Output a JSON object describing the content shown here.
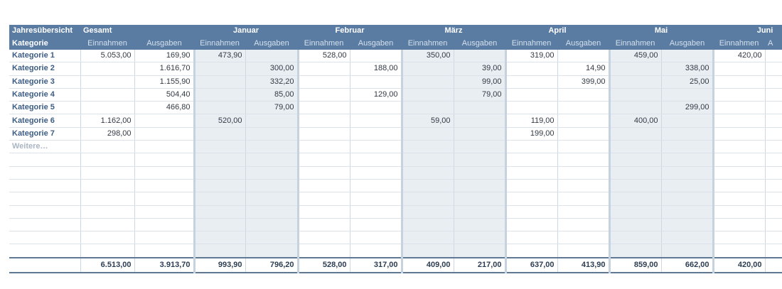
{
  "header": {
    "title": "Jahresübersicht",
    "gesamt": "Gesamt",
    "months": [
      "Januar",
      "Februar",
      "März",
      "April",
      "Mai",
      "Juni"
    ],
    "kategorie": "Kategorie",
    "einnahmen": "Einnahmen",
    "ausgaben": "Ausgaben",
    "ausgaben_clipped": "A"
  },
  "rows": [
    {
      "label": "Kategorie 1",
      "cells": [
        "5.053,00",
        "169,90",
        "473,90",
        "",
        "528,00",
        "",
        "350,00",
        "",
        "319,00",
        "",
        "459,00",
        "",
        "420,00",
        ""
      ]
    },
    {
      "label": "Kategorie 2",
      "cells": [
        "",
        "1.616,70",
        "",
        "300,00",
        "",
        "188,00",
        "",
        "39,00",
        "",
        "14,90",
        "",
        "338,00",
        "",
        ""
      ]
    },
    {
      "label": "Kategorie 3",
      "cells": [
        "",
        "1.155,90",
        "",
        "332,20",
        "",
        "",
        "",
        "99,00",
        "",
        "399,00",
        "",
        "25,00",
        "",
        ""
      ]
    },
    {
      "label": "Kategorie 4",
      "cells": [
        "",
        "504,40",
        "",
        "85,00",
        "",
        "129,00",
        "",
        "79,00",
        "",
        "",
        "",
        "",
        "",
        ""
      ]
    },
    {
      "label": "Kategorie 5",
      "cells": [
        "",
        "466,80",
        "",
        "79,00",
        "",
        "",
        "",
        "",
        "",
        "",
        "",
        "299,00",
        "",
        ""
      ]
    },
    {
      "label": "Kategorie 6",
      "cells": [
        "1.162,00",
        "",
        "520,00",
        "",
        "",
        "",
        "59,00",
        "",
        "119,00",
        "",
        "400,00",
        "",
        "",
        ""
      ]
    },
    {
      "label": "Kategorie 7",
      "cells": [
        "298,00",
        "",
        "",
        "",
        "",
        "",
        "",
        "",
        "199,00",
        "",
        "",
        "",
        "",
        ""
      ]
    },
    {
      "label": "Weitere…",
      "cells": [
        "",
        "",
        "",
        "",
        "",
        "",
        "",
        "",
        "",
        "",
        "",
        "",
        "",
        ""
      ]
    }
  ],
  "empty_rows": 8,
  "totals": [
    "6.513,00",
    "3.913,70",
    "993,90",
    "796,20",
    "528,00",
    "317,00",
    "409,00",
    "217,00",
    "637,00",
    "413,90",
    "859,00",
    "662,00",
    "420,00",
    ""
  ]
}
